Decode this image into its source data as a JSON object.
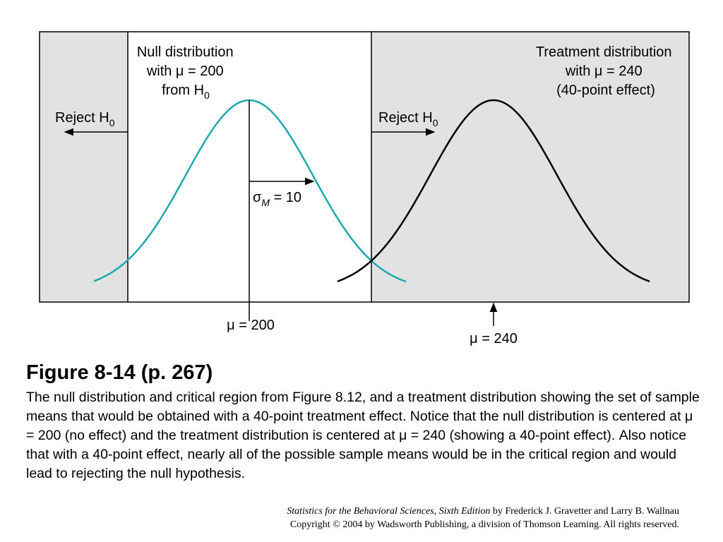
{
  "figure": {
    "null_label": [
      "Null distribution",
      "with μ = 200",
      "from H"
    ],
    "null_label_sub": "0",
    "treatment_label": [
      "Treatment distribution",
      "with μ = 240",
      "(40-point effect)"
    ],
    "reject_left": "Reject H",
    "reject_right": "Reject H",
    "reject_sub": "0",
    "sigma_label_sym": "σ",
    "sigma_label_sub": "M",
    "sigma_label_val": " = 10",
    "mu_null": "μ = 200",
    "mu_treatment": "μ = 240",
    "colors": {
      "null_curve": "#20a8b0",
      "treatment_curve": "#000000",
      "shaded_region": "#e2e2e2",
      "frame": "#000000"
    }
  },
  "caption": {
    "title": "Figure 8-14  (p. 267)",
    "body": "The null distribution and critical region from Figure 8.12, and a treatment distribution showing the set of sample means that would be obtained with a 40-point treatment effect. Notice that the null distribution is centered at μ = 200 (no effect) and the treatment distribution is centered at μ = 240 (showing a 40-point effect). Also notice that with a 40-point effect, nearly all of the possible sample means would be in the critical region and would lead to rejecting the null hypothesis."
  },
  "credit": {
    "book_title": "Statistics for the Behavioral Sciences, Sixth Edition",
    "authors": " by Frederick J. Gravetter and Larry B. Wallnau",
    "copyright": "Copyright © 2004 by Wadsworth Publishing, a division of Thomson Learning.  All rights reserved."
  }
}
